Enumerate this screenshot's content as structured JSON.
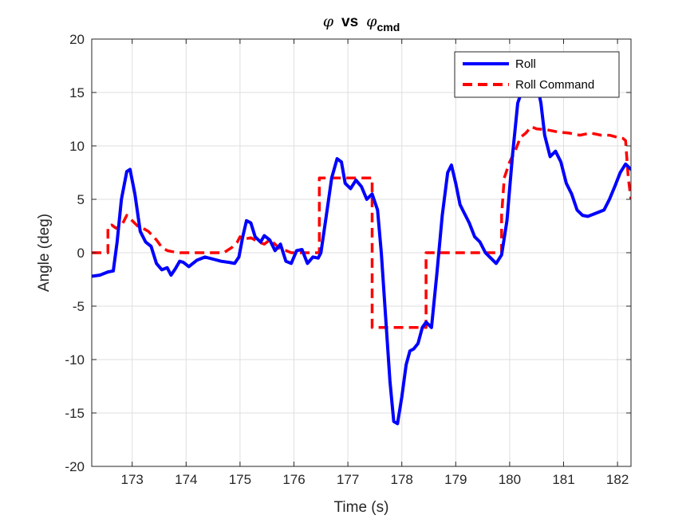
{
  "chart_data": {
    "type": "line",
    "title": {
      "sym1": "φ",
      "mid": "vs",
      "sym2": "φ",
      "sub": "cmd"
    },
    "xlabel": "Time (s)",
    "ylabel": "Angle (deg)",
    "xlim": [
      172.25,
      182.25
    ],
    "ylim": [
      -20,
      20
    ],
    "xticks": [
      173,
      174,
      175,
      176,
      177,
      178,
      179,
      180,
      181,
      182
    ],
    "yticks": [
      -20,
      -15,
      -10,
      -5,
      0,
      5,
      10,
      15,
      20
    ],
    "grid": true,
    "legend_position": "top-right",
    "series": [
      {
        "name": "Roll",
        "color": "#0000ff",
        "style": "solid",
        "x": [
          172.25,
          172.4,
          172.55,
          172.65,
          172.72,
          172.8,
          172.9,
          172.96,
          173.05,
          173.15,
          173.25,
          173.35,
          173.45,
          173.55,
          173.65,
          173.72,
          173.8,
          173.88,
          173.95,
          174.05,
          174.2,
          174.35,
          174.5,
          174.65,
          174.8,
          174.9,
          174.98,
          175.05,
          175.12,
          175.2,
          175.28,
          175.38,
          175.45,
          175.55,
          175.65,
          175.75,
          175.85,
          175.95,
          176.05,
          176.15,
          176.25,
          176.35,
          176.45,
          176.5,
          176.6,
          176.7,
          176.8,
          176.88,
          176.95,
          177.05,
          177.15,
          177.25,
          177.35,
          177.45,
          177.55,
          177.62,
          177.7,
          177.78,
          177.85,
          177.92,
          178.0,
          178.08,
          178.15,
          178.22,
          178.3,
          178.38,
          178.45,
          178.55,
          178.65,
          178.75,
          178.85,
          178.92,
          179.0,
          179.08,
          179.15,
          179.25,
          179.35,
          179.45,
          179.55,
          179.65,
          179.75,
          179.85,
          179.95,
          180.05,
          180.15,
          180.25,
          180.35,
          180.42,
          180.5,
          180.58,
          180.65,
          180.75,
          180.85,
          180.95,
          181.05,
          181.15,
          181.25,
          181.35,
          181.45,
          181.55,
          181.65,
          181.75,
          181.85,
          181.95,
          182.05,
          182.15,
          182.25
        ],
        "y": [
          -2.2,
          -2.1,
          -1.8,
          -1.7,
          1.0,
          5.0,
          7.6,
          7.8,
          5.5,
          2.0,
          1.0,
          0.6,
          -1.0,
          -1.6,
          -1.4,
          -2.1,
          -1.5,
          -0.8,
          -0.9,
          -1.3,
          -0.7,
          -0.4,
          -0.6,
          -0.8,
          -0.9,
          -1.0,
          -0.4,
          1.5,
          3.0,
          2.8,
          1.5,
          1.0,
          1.6,
          1.2,
          0.2,
          0.8,
          -0.8,
          -1.0,
          0.2,
          0.3,
          -1.0,
          -0.4,
          -0.5,
          0.0,
          3.5,
          7.0,
          8.8,
          8.5,
          6.5,
          6.0,
          6.8,
          6.2,
          5.0,
          5.5,
          4.0,
          0.0,
          -6.0,
          -12.0,
          -15.8,
          -16.0,
          -13.5,
          -10.5,
          -9.2,
          -9.0,
          -8.5,
          -7.0,
          -6.5,
          -7.0,
          -2.0,
          3.5,
          7.5,
          8.2,
          6.5,
          4.5,
          3.8,
          2.8,
          1.5,
          1.0,
          0.0,
          -0.5,
          -1.0,
          -0.2,
          3.0,
          9.0,
          14.0,
          15.5,
          16.0,
          17.0,
          16.0,
          14.0,
          11.0,
          9.0,
          9.5,
          8.5,
          6.5,
          5.5,
          4.0,
          3.5,
          3.4,
          3.6,
          3.8,
          4.0,
          5.0,
          6.2,
          7.5,
          8.3,
          7.8
        ]
      },
      {
        "name": "Roll Command",
        "color": "#ff0000",
        "style": "dashed",
        "x": [
          172.25,
          172.55,
          172.55,
          172.62,
          172.7,
          172.8,
          172.9,
          173.0,
          173.1,
          173.2,
          173.3,
          173.45,
          173.55,
          173.65,
          173.75,
          173.9,
          174.1,
          174.4,
          174.7,
          174.85,
          174.95,
          175.0,
          175.05,
          175.1,
          175.2,
          175.35,
          175.45,
          175.55,
          175.65,
          175.75,
          175.85,
          175.95,
          176.1,
          176.3,
          176.47,
          176.47,
          176.55,
          177.0,
          177.45,
          177.45,
          177.5,
          178.45,
          178.45,
          178.55,
          179.0,
          179.5,
          179.85,
          179.85,
          179.9,
          180.0,
          180.1,
          180.2,
          180.3,
          180.4,
          180.5,
          180.7,
          180.9,
          181.1,
          181.3,
          181.5,
          181.7,
          181.85,
          182.0,
          182.1,
          182.15,
          182.2,
          182.25
        ],
        "y": [
          0,
          0,
          2.4,
          2.6,
          2.3,
          2.5,
          3.5,
          3.0,
          2.5,
          2.3,
          2.0,
          1.2,
          0.5,
          0.2,
          0.1,
          0.0,
          0.0,
          0.0,
          0.0,
          0.5,
          1.0,
          1.5,
          1.2,
          1.3,
          1.4,
          1.0,
          0.8,
          1.2,
          0.8,
          0.3,
          0.2,
          0.0,
          0.0,
          0.0,
          0.0,
          7.0,
          7.0,
          7.0,
          7.0,
          -7.0,
          -7.0,
          -7.0,
          0.0,
          0.0,
          0.0,
          0.0,
          0.0,
          3.5,
          7.0,
          8.5,
          9.5,
          10.8,
          11.2,
          11.8,
          11.6,
          11.5,
          11.3,
          11.2,
          11.0,
          11.2,
          11.0,
          11.0,
          10.8,
          10.7,
          10.5,
          7.0,
          5.0
        ]
      }
    ]
  }
}
